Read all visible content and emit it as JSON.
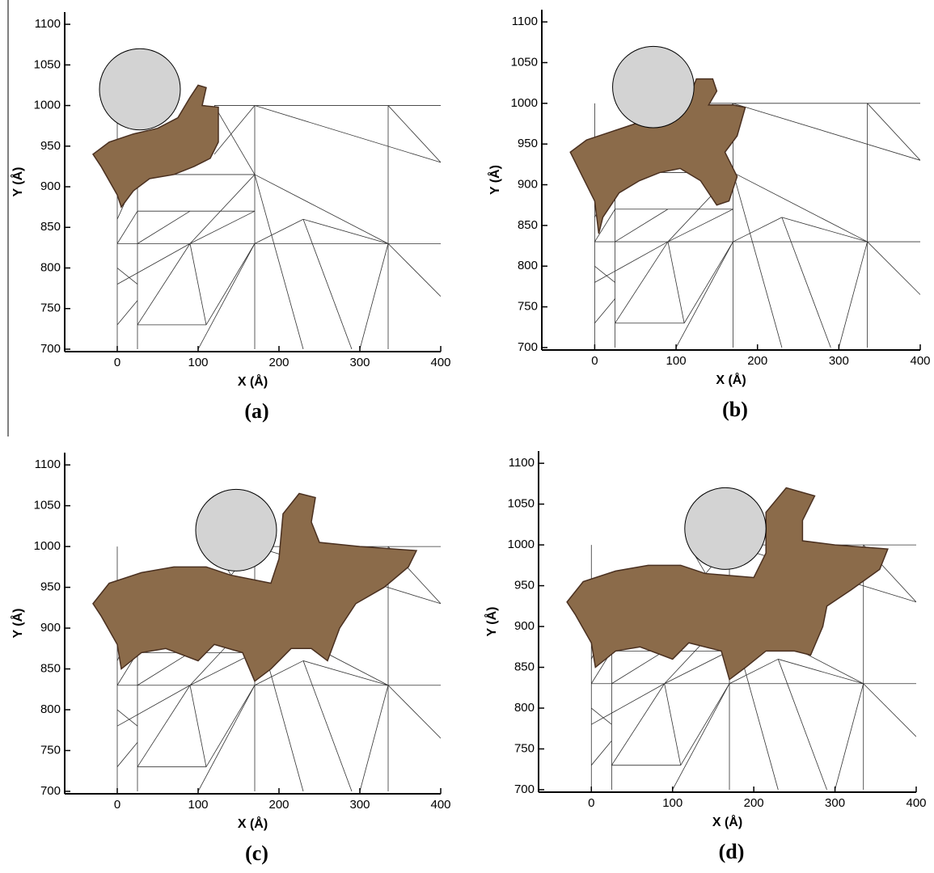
{
  "chart_data": [
    {
      "type": "mesh",
      "panel_label": "(a)",
      "xlabel": "X (Å)",
      "ylabel": "Y (Å)",
      "xlim": [
        -65,
        400
      ],
      "ylim": [
        697,
        1115
      ],
      "xticks": [
        0,
        100,
        200,
        300,
        400
      ],
      "yticks": [
        700,
        750,
        800,
        850,
        900,
        950,
        1000,
        1050,
        1100
      ],
      "indenter": {
        "x": 28,
        "y": 1020,
        "r": 50,
        "color": "#d3d3d3"
      },
      "atom_color": "#8b6b4a"
    },
    {
      "type": "mesh",
      "panel_label": "(b)",
      "xlabel": "X (Å)",
      "ylabel": "Y (Å)",
      "xlim": [
        -65,
        400
      ],
      "ylim": [
        697,
        1115
      ],
      "xticks": [
        0,
        100,
        200,
        300,
        400
      ],
      "yticks": [
        700,
        750,
        800,
        850,
        900,
        950,
        1000,
        1050,
        1100
      ],
      "indenter": {
        "x": 72,
        "y": 1020,
        "r": 50,
        "color": "#d3d3d3"
      },
      "atom_color": "#8b6b4a"
    },
    {
      "type": "mesh",
      "panel_label": "(c)",
      "xlabel": "X (Å)",
      "ylabel": "Y (Å)",
      "xlim": [
        -65,
        400
      ],
      "ylim": [
        697,
        1115
      ],
      "xticks": [
        0,
        100,
        200,
        300,
        400
      ],
      "yticks": [
        700,
        750,
        800,
        850,
        900,
        950,
        1000,
        1050,
        1100
      ],
      "indenter": {
        "x": 147,
        "y": 1020,
        "r": 50,
        "color": "#d3d3d3"
      },
      "atom_color": "#8b6b4a"
    },
    {
      "type": "mesh",
      "panel_label": "(d)",
      "xlabel": "X (Å)",
      "ylabel": "Y (Å)",
      "xlim": [
        -65,
        400
      ],
      "ylim": [
        697,
        1115
      ],
      "xticks": [
        0,
        100,
        200,
        300,
        400
      ],
      "yticks": [
        700,
        750,
        800,
        850,
        900,
        950,
        1000,
        1050,
        1100
      ],
      "indenter": {
        "x": 165,
        "y": 1020,
        "r": 50,
        "color": "#d3d3d3"
      },
      "atom_color": "#8b6b4a"
    }
  ]
}
